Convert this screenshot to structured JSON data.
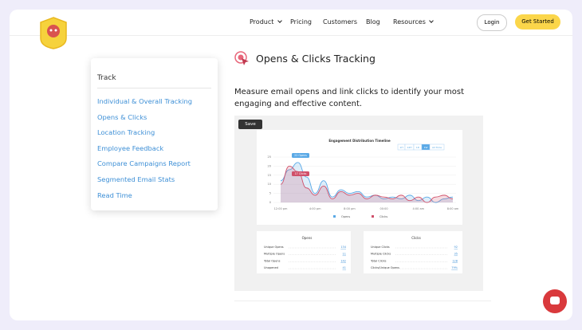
{
  "nav": {
    "links": [
      "Product",
      "Pricing",
      "Customers",
      "Blog",
      "Resources"
    ],
    "login": "Login",
    "cta": "Get Started"
  },
  "sidebar": {
    "title": "Track",
    "links": [
      "Individual & Overall Tracking",
      "Opens & Clicks",
      "Location Tracking",
      "Employee Feedback",
      "Compare Campaigns Report",
      "Segmented Email Stats",
      "Read Time"
    ]
  },
  "section": {
    "title": "Opens & Clicks Tracking",
    "description": "Measure email opens and link clicks to identify your most engaging and effective content.",
    "save": "Save"
  },
  "chart_data": {
    "type": "line",
    "title": "Engagement Distribution Timeline",
    "range_buttons": [
      "1H",
      "12H",
      "1D",
      "1W",
      "All Time"
    ],
    "categories": [
      "12:00 pm",
      null,
      null,
      null,
      "4:00 pm",
      null,
      null,
      null,
      "8:00 pm",
      null,
      null,
      null,
      "00:00",
      null,
      null,
      null,
      "4:00 am",
      null,
      null,
      null,
      "8:00 am"
    ],
    "series": [
      {
        "name": "Opens",
        "color": "#5aa9e6",
        "values": [
          12,
          18,
          22,
          14,
          5,
          12,
          3,
          7,
          5,
          6,
          3,
          4,
          2,
          3,
          2,
          4,
          1,
          3,
          0,
          2,
          3
        ]
      },
      {
        "name": "Clicks",
        "color": "#d0506a",
        "values": [
          10,
          20,
          17,
          8,
          4,
          9,
          2,
          6,
          4,
          5,
          2,
          4,
          3,
          2,
          4,
          1,
          3,
          0,
          3,
          4,
          2
        ]
      }
    ],
    "annotations": [
      "22 Opens",
      "17 Clicks"
    ],
    "ylim": [
      0,
      25
    ],
    "yticks": [
      0,
      5,
      10,
      15,
      20,
      25
    ],
    "grid": true
  },
  "stats": [
    {
      "title": "Opens",
      "rows": [
        [
          "Unique Opens",
          "134"
        ],
        [
          "Multiple Opens",
          "11"
        ],
        [
          "Total Opens",
          "142"
        ],
        [
          "Unopened",
          "41"
        ]
      ]
    },
    {
      "title": "Clicks",
      "rows": [
        [
          "Unique Clicks",
          "92"
        ],
        [
          "Multiple Clicks",
          "35"
        ],
        [
          "Total Clicks",
          "128"
        ],
        [
          "Clicks/Unique Opens",
          "79%"
        ]
      ]
    }
  ]
}
